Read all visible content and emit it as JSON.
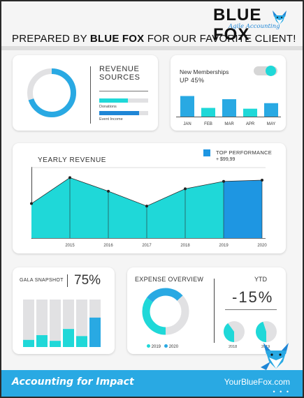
{
  "brand": {
    "name": "BLUE FOX",
    "tagline": "Agile Accounting",
    "logo": "fox-logo-icon"
  },
  "header": {
    "prepared_prefix": "PREPARED BY ",
    "prepared_bold": "BLUE FOX",
    "prepared_suffix": " FOR OUR FAVORITE CLIENT!"
  },
  "colors": {
    "accent": "#29a9e3",
    "teal": "#1fd8d8",
    "grey": "#e1e1e3",
    "dark_text": "#333333",
    "blue_bar": "#1e96e2"
  },
  "revenue_sources": {
    "title_line1": "REVENUE",
    "title_line2": "SOURCES",
    "donut_percent": 70,
    "bars": [
      {
        "label": "Donations",
        "fill": 0.58
      },
      {
        "label": "Event Income",
        "fill": 0.82
      }
    ]
  },
  "memberships": {
    "title": "New Memberships",
    "subtitle": "UP 45%",
    "toggle": "on",
    "chart_data": {
      "type": "bar",
      "categories": [
        "JAN",
        "FEB",
        "MAR",
        "APR",
        "MAY"
      ],
      "values": [
        26,
        11,
        22,
        10,
        17
      ],
      "ylim": [
        0,
        30
      ]
    }
  },
  "yearly_revenue": {
    "title": "YEARLY REVENUE",
    "legend_label": "TOP PERFORMANCE",
    "legend_sub": "+ $99,99",
    "chart_data": {
      "type": "area",
      "categories": [
        "",
        "2015",
        "2016",
        "2017",
        "2018",
        "2019",
        "2020"
      ],
      "values": [
        56,
        98,
        76,
        52,
        80,
        92,
        94
      ],
      "highlight_index_from": 5,
      "ylim": [
        0,
        120
      ],
      "grid": false
    }
  },
  "gala": {
    "title": "GALA SNAPSHOT",
    "value": "75%",
    "chart_data": {
      "type": "bar",
      "categories": [
        "1",
        "2",
        "3",
        "4",
        "5",
        "6"
      ],
      "values": [
        0.15,
        0.25,
        0.13,
        0.38,
        0.23,
        0.62
      ],
      "ylim": [
        0,
        1
      ]
    }
  },
  "expense": {
    "title": "EXPENSE OVERVIEW",
    "legend": [
      {
        "label": "2019",
        "color": "#1fd8d8"
      },
      {
        "label": "2020",
        "color": "#29a9e3"
      }
    ],
    "donut_segments": [
      {
        "color": "#1fd8d8",
        "share": 0.35
      },
      {
        "color": "#29a9e3",
        "share": 0.28
      },
      {
        "color": "#e1e1e3",
        "share": 0.37
      }
    ]
  },
  "ytd": {
    "title": "YTD",
    "value": "-15%",
    "pies": [
      {
        "label": "2018",
        "share": 0.4
      },
      {
        "label": "2019",
        "share": 0.45
      }
    ]
  },
  "footer": {
    "tagline": "Accounting for Impact",
    "site": "YourBlueFox.com",
    "dots": "• • •"
  }
}
